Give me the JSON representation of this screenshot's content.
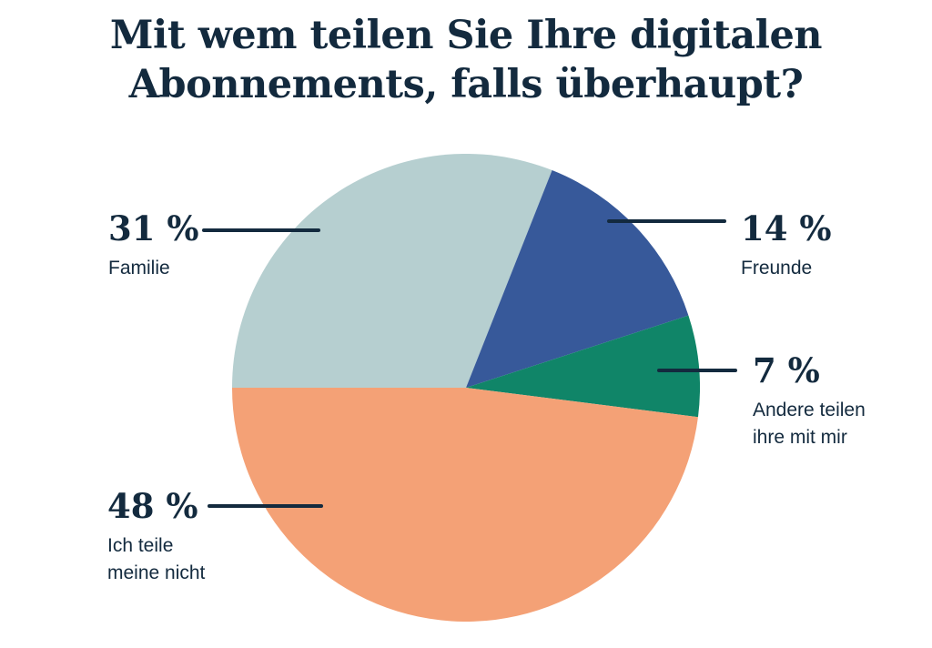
{
  "page": {
    "background": "#ffffff"
  },
  "colors": {
    "ink": "#132a3e",
    "background": "#ffffff"
  },
  "title": {
    "line1": "Mit wem teilen Sie Ihre digitalen",
    "line2": "Abonnements, falls überhaupt?"
  },
  "chart_data": {
    "type": "pie",
    "title": "Mit wem teilen Sie Ihre digitalen Abonnements, falls überhaupt?",
    "start_angle_clock_deg": 270,
    "direction": "clockwise",
    "legend_position": "callouts-with-leader-lines",
    "slices": [
      {
        "label": "Familie",
        "value": 31,
        "pct_label": "31 %",
        "display_label": "Familie",
        "color": "#b6cfd0"
      },
      {
        "label": "Freunde",
        "value": 14,
        "pct_label": "14 %",
        "display_label": "Freunde",
        "color": "#37599a"
      },
      {
        "label": "Andere teilen ihre mit mir",
        "value": 7,
        "pct_label": "7 %",
        "display_label": "Andere teilen\nihre mit mir",
        "color": "#108568"
      },
      {
        "label": "Ich teile meine nicht",
        "value": 48,
        "pct_label": "48 %",
        "display_label": "Ich teile\nmeine nicht",
        "color": "#f4a176"
      }
    ]
  }
}
